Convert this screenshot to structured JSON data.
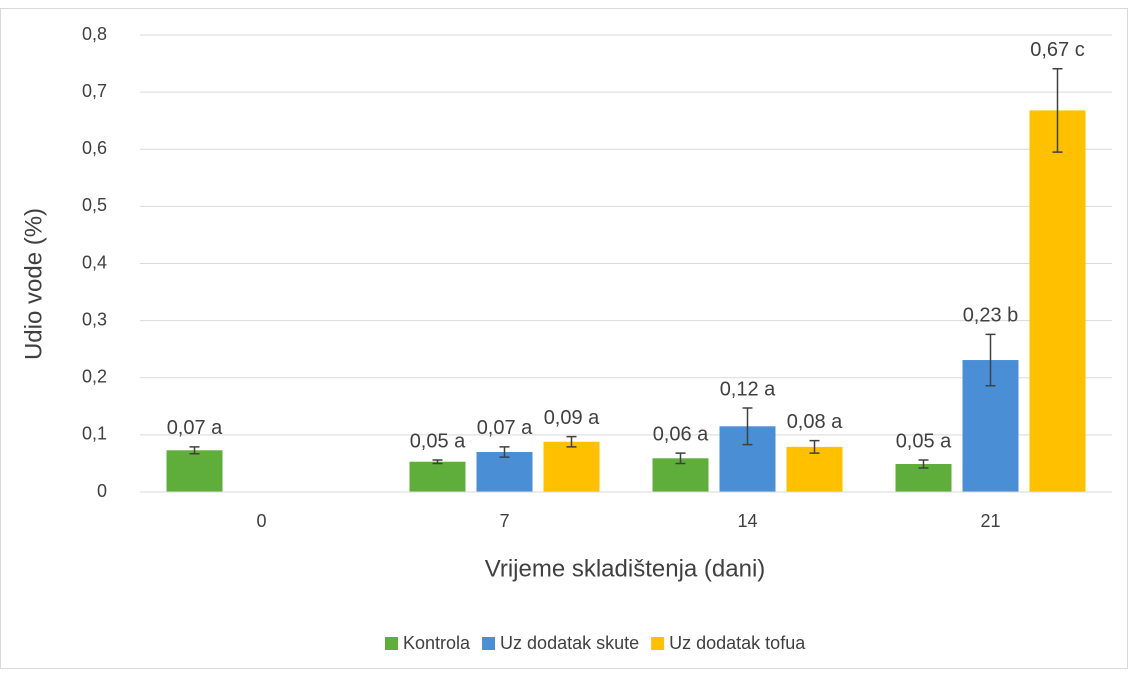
{
  "chart_data": {
    "type": "bar",
    "x_label": "Vrijeme skladištenja (dani)",
    "y_label": "Udio vode (%)",
    "categories": [
      "0",
      "7",
      "14",
      "21"
    ],
    "series": [
      {
        "name": "Kontrola",
        "color": "#5fae3c",
        "values": [
          0.073,
          0.053,
          0.059,
          0.049
        ],
        "errors": [
          0.006,
          0.003,
          0.009,
          0.007
        ],
        "value_labels": [
          "0,07 a",
          "0,05 a",
          "0,06 a",
          "0,05 a"
        ]
      },
      {
        "name": "Uz dodatak skute",
        "color": "#4a8fd6",
        "values": [
          null,
          0.07,
          0.115,
          0.231
        ],
        "errors": [
          null,
          0.009,
          0.032,
          0.045
        ],
        "value_labels": [
          null,
          "0,07 a",
          "0,12 a",
          "0,23 b"
        ]
      },
      {
        "name": "Uz dodatak tofua",
        "color": "#ffc000",
        "values": [
          null,
          0.088,
          0.079,
          0.668
        ],
        "errors": [
          null,
          0.009,
          0.011,
          0.073
        ],
        "value_labels": [
          null,
          "0,09 a",
          "0,08 a",
          "0,67 c"
        ]
      }
    ],
    "ylim": [
      0,
      0.8
    ],
    "yticks": [
      0,
      {
        "value": 0.1,
        "label": "0,1"
      },
      {
        "value": 0.2,
        "label": "0,2"
      },
      {
        "value": 0.3,
        "label": "0,3"
      },
      {
        "value": 0.4,
        "label": "0,4"
      },
      {
        "value": 0.5,
        "label": "0,5"
      },
      {
        "value": 0.6,
        "label": "0,6"
      },
      {
        "value": 0.7,
        "label": "0,7"
      },
      {
        "value": 0.8,
        "label": "0,8"
      }
    ],
    "grid": true,
    "legend": "bottom"
  }
}
